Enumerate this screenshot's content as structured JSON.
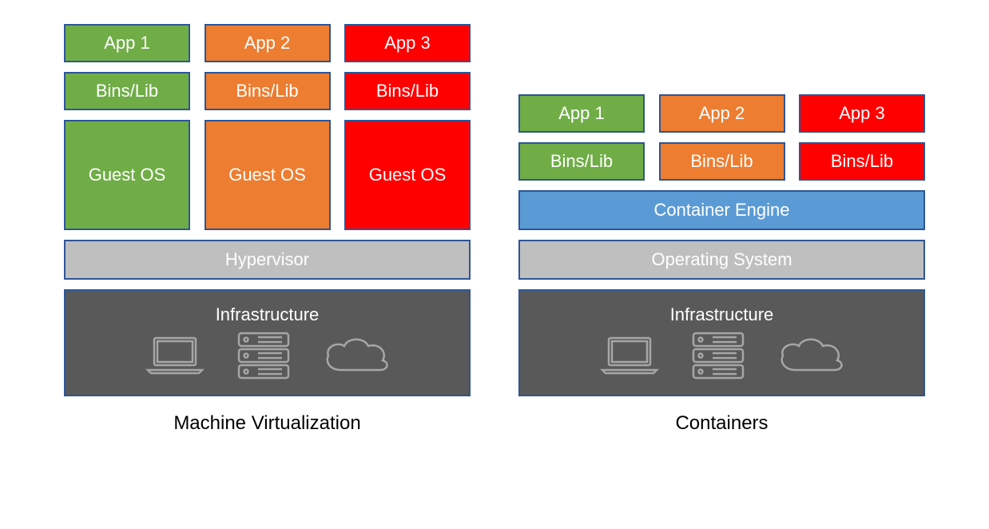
{
  "colors": {
    "green": "#70ad47",
    "orange": "#ed7d31",
    "red": "#ff0000",
    "blue": "#5b9bd5",
    "gray": "#bfbfbf",
    "darkgray": "#595959",
    "border": "#2e5597",
    "iconStroke": "#a6a6a6",
    "white": "#ffffff",
    "black": "#000000"
  },
  "vm": {
    "col1": {
      "app": "App 1",
      "bins": "Bins/Lib",
      "guest": "Guest OS"
    },
    "col2": {
      "app": "App 2",
      "bins": "Bins/Lib",
      "guest": "Guest OS"
    },
    "col3": {
      "app": "App 3",
      "bins": "Bins/Lib",
      "guest": "Guest OS"
    },
    "hypervisor": "Hypervisor",
    "infra": "Infrastructure",
    "caption": "Machine Virtualization"
  },
  "ct": {
    "col1": {
      "app": "App 1",
      "bins": "Bins/Lib"
    },
    "col2": {
      "app": "App 2",
      "bins": "Bins/Lib"
    },
    "col3": {
      "app": "App 3",
      "bins": "Bins/Lib"
    },
    "engine": "Container Engine",
    "os": "Operating System",
    "infra": "Infrastructure",
    "caption": "Containers"
  }
}
